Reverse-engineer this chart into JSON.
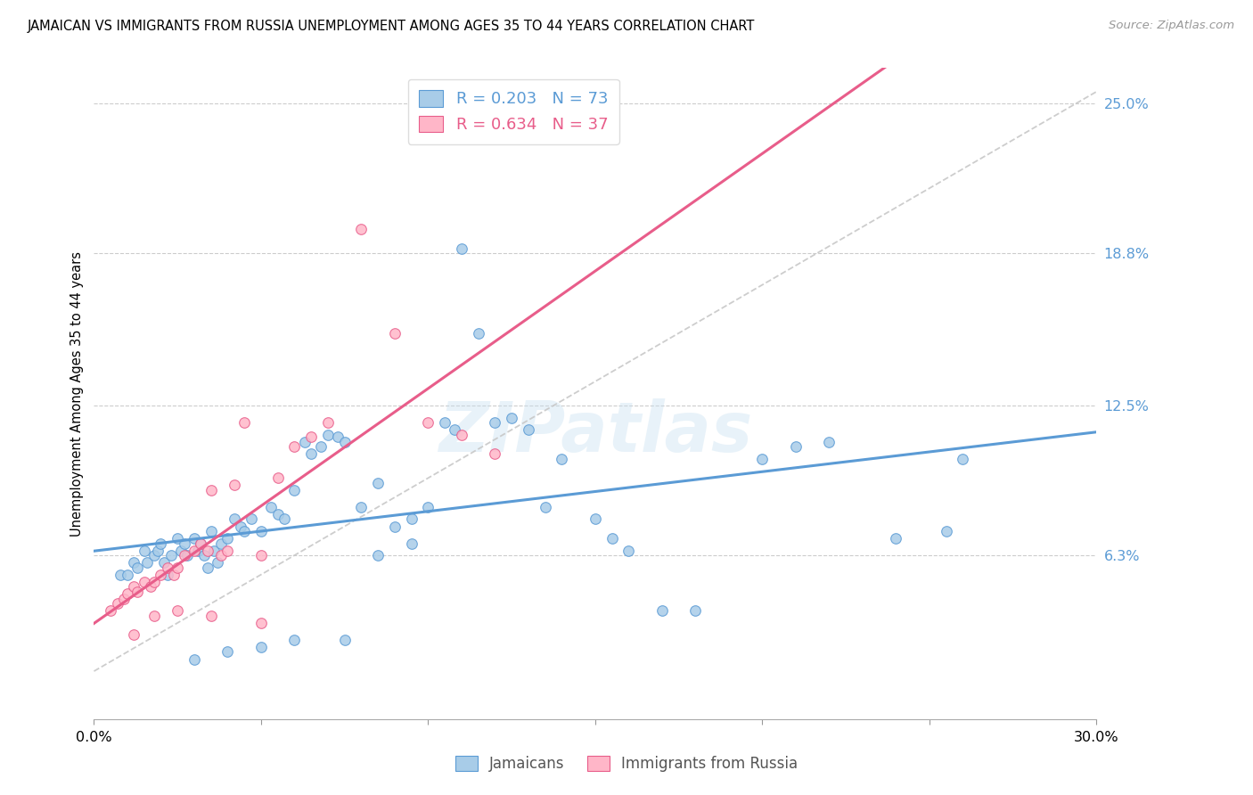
{
  "title": "JAMAICAN VS IMMIGRANTS FROM RUSSIA UNEMPLOYMENT AMONG AGES 35 TO 44 YEARS CORRELATION CHART",
  "source": "Source: ZipAtlas.com",
  "ylabel": "Unemployment Among Ages 35 to 44 years",
  "xlim": [
    0.0,
    0.3
  ],
  "ylim": [
    -0.005,
    0.265
  ],
  "y_tick_positions": [
    0.063,
    0.125,
    0.188,
    0.25
  ],
  "y_tick_labels": [
    "6.3%",
    "12.5%",
    "18.8%",
    "25.0%"
  ],
  "r_jamaican": 0.203,
  "n_jamaican": 73,
  "r_russia": 0.634,
  "n_russia": 37,
  "color_jamaican": "#a8cce8",
  "color_russia": "#ffb6c8",
  "color_jamaican_line": "#5b9bd5",
  "color_russia_line": "#e85d8a",
  "color_dashed_line": "#c8c8c8",
  "watermark": "ZIPatlas",
  "jamaican_x": [
    0.008,
    0.01,
    0.012,
    0.013,
    0.015,
    0.016,
    0.018,
    0.019,
    0.02,
    0.021,
    0.022,
    0.023,
    0.025,
    0.026,
    0.027,
    0.028,
    0.03,
    0.031,
    0.032,
    0.033,
    0.034,
    0.035,
    0.036,
    0.037,
    0.038,
    0.04,
    0.042,
    0.044,
    0.045,
    0.047,
    0.05,
    0.053,
    0.055,
    0.057,
    0.06,
    0.063,
    0.065,
    0.068,
    0.07,
    0.073,
    0.075,
    0.08,
    0.085,
    0.09,
    0.095,
    0.1,
    0.105,
    0.11,
    0.115,
    0.12,
    0.125,
    0.13,
    0.135,
    0.14,
    0.15,
    0.155,
    0.16,
    0.17,
    0.18,
    0.2,
    0.21,
    0.22,
    0.24,
    0.255,
    0.26,
    0.108,
    0.095,
    0.085,
    0.075,
    0.06,
    0.05,
    0.04,
    0.03
  ],
  "jamaican_y": [
    0.055,
    0.055,
    0.06,
    0.058,
    0.065,
    0.06,
    0.063,
    0.065,
    0.068,
    0.06,
    0.055,
    0.063,
    0.07,
    0.065,
    0.068,
    0.063,
    0.07,
    0.065,
    0.068,
    0.063,
    0.058,
    0.073,
    0.065,
    0.06,
    0.068,
    0.07,
    0.078,
    0.075,
    0.073,
    0.078,
    0.073,
    0.083,
    0.08,
    0.078,
    0.09,
    0.11,
    0.105,
    0.108,
    0.113,
    0.112,
    0.11,
    0.083,
    0.093,
    0.075,
    0.078,
    0.083,
    0.118,
    0.19,
    0.155,
    0.118,
    0.12,
    0.115,
    0.083,
    0.103,
    0.078,
    0.07,
    0.065,
    0.04,
    0.04,
    0.103,
    0.108,
    0.11,
    0.07,
    0.073,
    0.103,
    0.115,
    0.068,
    0.063,
    0.028,
    0.028,
    0.025,
    0.023,
    0.02
  ],
  "russia_x": [
    0.005,
    0.007,
    0.009,
    0.01,
    0.012,
    0.013,
    0.015,
    0.017,
    0.018,
    0.02,
    0.022,
    0.024,
    0.025,
    0.027,
    0.03,
    0.032,
    0.034,
    0.035,
    0.038,
    0.04,
    0.042,
    0.045,
    0.05,
    0.055,
    0.06,
    0.065,
    0.07,
    0.08,
    0.09,
    0.1,
    0.11,
    0.12,
    0.012,
    0.018,
    0.025,
    0.035,
    0.05
  ],
  "russia_y": [
    0.04,
    0.043,
    0.045,
    0.047,
    0.05,
    0.048,
    0.052,
    0.05,
    0.052,
    0.055,
    0.058,
    0.055,
    0.058,
    0.063,
    0.065,
    0.068,
    0.065,
    0.09,
    0.063,
    0.065,
    0.092,
    0.118,
    0.063,
    0.095,
    0.108,
    0.112,
    0.118,
    0.198,
    0.155,
    0.118,
    0.113,
    0.105,
    0.03,
    0.038,
    0.04,
    0.038,
    0.035
  ]
}
